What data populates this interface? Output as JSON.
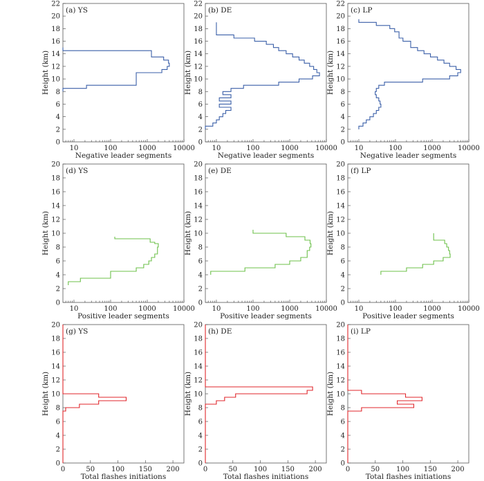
{
  "colors": {
    "negative": "#3a5fa8",
    "positive": "#6cc04a",
    "initiations": "#e0262b",
    "axis": "#555555"
  },
  "chart_data": [
    {
      "type": "line",
      "panel_label": "(a) YS",
      "xlabel": "Negative leader segments",
      "ylabel": "Height (km)",
      "xscale": "log",
      "xlim": [
        5,
        10000
      ],
      "xticks": [
        10,
        100,
        1000,
        10000
      ],
      "ylim": [
        0,
        22
      ],
      "yticks": [
        0,
        2,
        4,
        6,
        8,
        10,
        12,
        14,
        16,
        18,
        20,
        22
      ],
      "series": [
        {
          "color": "negative",
          "x": [
            5,
            22,
            500,
            2500,
            3500,
            4000,
            3800,
            2800,
            1300,
            5
          ],
          "y": [
            [
              8.0,
              8.5
            ],
            [
              8.5,
              9.0
            ],
            [
              9.0,
              11.0
            ],
            [
              11.0,
              11.5
            ],
            [
              11.5,
              12.0
            ],
            [
              12.0,
              12.5
            ],
            [
              12.5,
              13.0
            ],
            [
              13.0,
              13.5
            ],
            [
              13.5,
              14.5
            ],
            [
              14.5,
              15.0
            ]
          ]
        }
      ]
    },
    {
      "type": "line",
      "panel_label": "(b) DE",
      "xlabel": "Negative leader segments",
      "ylabel": "Height (km)",
      "xscale": "log",
      "xlim": [
        5,
        10000
      ],
      "xticks": [
        10,
        100,
        1000,
        10000
      ],
      "ylim": [
        0,
        22
      ],
      "yticks": [
        0,
        2,
        4,
        6,
        8,
        10,
        12,
        14,
        16,
        18,
        20,
        22
      ],
      "series": [
        {
          "color": "negative",
          "x": [
            5,
            8,
            10,
            12,
            15,
            18,
            25,
            12,
            25,
            12,
            25,
            15,
            25,
            55,
            500,
            1800,
            4200,
            6500,
            5500,
            4500,
            3500,
            2500,
            1800,
            1200,
            800,
            500,
            360,
            230,
            110,
            30,
            10
          ],
          "y": [
            [
              2.0,
              2.5
            ],
            [
              2.5,
              3.0
            ],
            [
              3.0,
              3.5
            ],
            [
              3.5,
              4.0
            ],
            [
              4.0,
              4.5
            ],
            [
              4.5,
              5.0
            ],
            [
              5.0,
              5.5
            ],
            [
              5.5,
              6.0
            ],
            [
              6.0,
              6.5
            ],
            [
              6.5,
              7.0
            ],
            [
              7.0,
              7.5
            ],
            [
              7.5,
              8.0
            ],
            [
              8.0,
              8.5
            ],
            [
              8.5,
              9.0
            ],
            [
              9.0,
              9.5
            ],
            [
              9.5,
              10.0
            ],
            [
              10.0,
              10.5
            ],
            [
              10.5,
              11.0
            ],
            [
              11.0,
              11.5
            ],
            [
              11.5,
              12.0
            ],
            [
              12.0,
              12.5
            ],
            [
              12.5,
              13.0
            ],
            [
              13.0,
              13.5
            ],
            [
              13.5,
              14.0
            ],
            [
              14.0,
              14.5
            ],
            [
              14.5,
              15.0
            ],
            [
              15.0,
              15.5
            ],
            [
              15.5,
              16.0
            ],
            [
              16.0,
              16.5
            ],
            [
              16.5,
              17.0
            ],
            [
              17.0,
              19.0
            ]
          ]
        }
      ]
    },
    {
      "type": "line",
      "panel_label": "(c) LP",
      "xlabel": "Negative leader segments",
      "ylabel": "Height (km)",
      "xscale": "log",
      "xlim": [
        5,
        10000
      ],
      "xticks": [
        10,
        100,
        1000,
        10000
      ],
      "ylim": [
        0,
        22
      ],
      "yticks": [
        0,
        2,
        4,
        6,
        8,
        10,
        12,
        14,
        16,
        18,
        20,
        22
      ],
      "series": [
        {
          "color": "negative",
          "x": [
            10,
            13,
            16,
            20,
            25,
            30,
            35,
            40,
            38,
            35,
            30,
            28,
            30,
            35,
            50,
            550,
            3000,
            5000,
            6000,
            4500,
            3000,
            2100,
            1400,
            900,
            600,
            400,
            260,
            160,
            125,
            95,
            70,
            30,
            10
          ],
          "y": [
            [
              2.0,
              2.5
            ],
            [
              2.5,
              3.0
            ],
            [
              3.0,
              3.5
            ],
            [
              3.5,
              4.0
            ],
            [
              4.0,
              4.5
            ],
            [
              4.5,
              5.0
            ],
            [
              5.0,
              5.5
            ],
            [
              5.5,
              6.0
            ],
            [
              6.0,
              6.5
            ],
            [
              6.5,
              7.0
            ],
            [
              7.0,
              7.5
            ],
            [
              7.5,
              8.0
            ],
            [
              8.0,
              8.5
            ],
            [
              8.5,
              9.0
            ],
            [
              9.0,
              9.5
            ],
            [
              9.5,
              10.0
            ],
            [
              10.0,
              10.5
            ],
            [
              10.5,
              11.0
            ],
            [
              11.0,
              11.5
            ],
            [
              11.5,
              12.0
            ],
            [
              12.0,
              12.5
            ],
            [
              12.5,
              13.0
            ],
            [
              13.0,
              13.5
            ],
            [
              13.5,
              14.0
            ],
            [
              14.0,
              14.5
            ],
            [
              14.5,
              15.0
            ],
            [
              15.0,
              16.0
            ],
            [
              16.0,
              16.5
            ],
            [
              16.5,
              17.5
            ],
            [
              17.5,
              18.0
            ],
            [
              18.0,
              18.5
            ],
            [
              18.5,
              19.0
            ],
            [
              19.0,
              19.5
            ]
          ]
        }
      ]
    },
    {
      "type": "line",
      "panel_label": "(d) YS",
      "xlabel": "Positive leader segments",
      "ylabel": "Height (km)",
      "xscale": "log",
      "xlim": [
        5,
        10000
      ],
      "xticks": [
        10,
        100,
        1000,
        10000
      ],
      "ylim": [
        0,
        20
      ],
      "yticks": [
        0,
        2,
        4,
        6,
        8,
        10,
        12,
        14,
        16,
        18,
        20
      ],
      "series": [
        {
          "color": "positive",
          "x": [
            7,
            15,
            100,
            500,
            800,
            1100,
            1300,
            1600,
            1900,
            2000,
            1600,
            1200,
            130
          ],
          "y": [
            [
              2.5,
              3.0
            ],
            [
              3.0,
              3.5
            ],
            [
              3.5,
              4.5
            ],
            [
              4.5,
              5.0
            ],
            [
              5.0,
              5.5
            ],
            [
              5.5,
              6.0
            ],
            [
              6.0,
              6.5
            ],
            [
              6.5,
              7.0
            ],
            [
              7.0,
              8.0
            ],
            [
              8.0,
              8.5
            ],
            [
              8.5,
              8.7
            ],
            [
              8.7,
              9.2
            ],
            [
              9.2,
              9.5
            ]
          ]
        }
      ]
    },
    {
      "type": "line",
      "panel_label": "(e) DE",
      "xlabel": "Positive leader segments",
      "ylabel": "Height (km)",
      "xscale": "log",
      "xlim": [
        5,
        10000
      ],
      "xticks": [
        10,
        100,
        1000,
        10000
      ],
      "ylim": [
        0,
        20
      ],
      "yticks": [
        0,
        2,
        4,
        6,
        8,
        10,
        12,
        14,
        16,
        18,
        20
      ],
      "series": [
        {
          "color": "positive",
          "x": [
            7,
            60,
            400,
            1000,
            2000,
            3000,
            3500,
            3800,
            3600,
            2600,
            800,
            100
          ],
          "y": [
            [
              4.0,
              4.5
            ],
            [
              4.5,
              5.0
            ],
            [
              5.0,
              5.5
            ],
            [
              5.5,
              6.0
            ],
            [
              6.0,
              6.5
            ],
            [
              6.5,
              7.5
            ],
            [
              7.5,
              8.0
            ],
            [
              8.0,
              8.5
            ],
            [
              8.5,
              9.0
            ],
            [
              9.0,
              9.5
            ],
            [
              9.5,
              10.0
            ],
            [
              10.0,
              10.5
            ]
          ]
        }
      ]
    },
    {
      "type": "line",
      "panel_label": "(f) LP",
      "xlabel": "Positive leader segments",
      "ylabel": "Height (km)",
      "xscale": "log",
      "xlim": [
        5,
        10000
      ],
      "xticks": [
        10,
        100,
        1000,
        10000
      ],
      "ylim": [
        0,
        20
      ],
      "yticks": [
        0,
        2,
        4,
        6,
        8,
        10,
        12,
        14,
        16,
        18,
        20
      ],
      "series": [
        {
          "color": "positive",
          "x": [
            40,
            200,
            550,
            1100,
            2000,
            3100,
            3000,
            2800,
            2500,
            2200,
            1100
          ],
          "y": [
            [
              4.0,
              4.5
            ],
            [
              4.5,
              5.0
            ],
            [
              5.0,
              5.5
            ],
            [
              5.5,
              6.0
            ],
            [
              6.0,
              6.5
            ],
            [
              6.5,
              7.0
            ],
            [
              7.0,
              7.5
            ],
            [
              7.5,
              8.0
            ],
            [
              8.0,
              8.5
            ],
            [
              8.5,
              9.0
            ],
            [
              9.0,
              10.0
            ]
          ]
        }
      ]
    },
    {
      "type": "line",
      "panel_label": "(g) YS",
      "xlabel": "Total flashes initiations",
      "ylabel": "Height (km)",
      "xscale": "linear",
      "xlim": [
        0,
        220
      ],
      "xticks": [
        0,
        50,
        100,
        150,
        200
      ],
      "ylim": [
        0,
        20
      ],
      "yticks": [
        0,
        2,
        4,
        6,
        8,
        10,
        12,
        14,
        16,
        18,
        20
      ],
      "series": [
        {
          "color": "initiations",
          "x": [
            0,
            5,
            30,
            65,
            115,
            115,
            65,
            0
          ],
          "y": [
            [
              0.0,
              7.5
            ],
            [
              7.5,
              8.0
            ],
            [
              8.0,
              8.5
            ],
            [
              8.5,
              9.0
            ],
            [
              9.0,
              9.5
            ],
            [
              9.5,
              9.5
            ],
            [
              9.5,
              10.0
            ],
            [
              10.0,
              20.0
            ]
          ]
        }
      ]
    },
    {
      "type": "line",
      "panel_label": "(h) DE",
      "xlabel": "Total flashes initiations",
      "ylabel": "Height (km)",
      "xscale": "linear",
      "xlim": [
        0,
        220
      ],
      "xticks": [
        0,
        50,
        100,
        150,
        200
      ],
      "ylim": [
        0,
        20
      ],
      "yticks": [
        0,
        2,
        4,
        6,
        8,
        10,
        12,
        14,
        16,
        18,
        20
      ],
      "series": [
        {
          "color": "initiations",
          "x": [
            0,
            20,
            35,
            55,
            185,
            195,
            0
          ],
          "y": [
            [
              0.0,
              8.5
            ],
            [
              8.5,
              9.0
            ],
            [
              9.0,
              9.5
            ],
            [
              9.5,
              10.0
            ],
            [
              10.0,
              10.5
            ],
            [
              10.5,
              11.0
            ],
            [
              11.0,
              20.0
            ]
          ]
        }
      ]
    },
    {
      "type": "line",
      "panel_label": "(i) LP",
      "xlabel": "Total flashes initiations",
      "ylabel": "Height (km)",
      "xscale": "linear",
      "xlim": [
        0,
        220
      ],
      "xticks": [
        0,
        50,
        100,
        150,
        200
      ],
      "ylim": [
        0,
        20
      ],
      "yticks": [
        0,
        2,
        4,
        6,
        8,
        10,
        12,
        14,
        16,
        18,
        20
      ],
      "series": [
        {
          "color": "initiations",
          "x": [
            0,
            25,
            120,
            90,
            135,
            105,
            25,
            0
          ],
          "y": [
            [
              0.0,
              7.5
            ],
            [
              7.5,
              8.0
            ],
            [
              8.0,
              8.5
            ],
            [
              8.5,
              9.0
            ],
            [
              9.0,
              9.5
            ],
            [
              9.5,
              10.0
            ],
            [
              10.0,
              10.5
            ],
            [
              10.5,
              20.0
            ]
          ]
        }
      ]
    }
  ]
}
